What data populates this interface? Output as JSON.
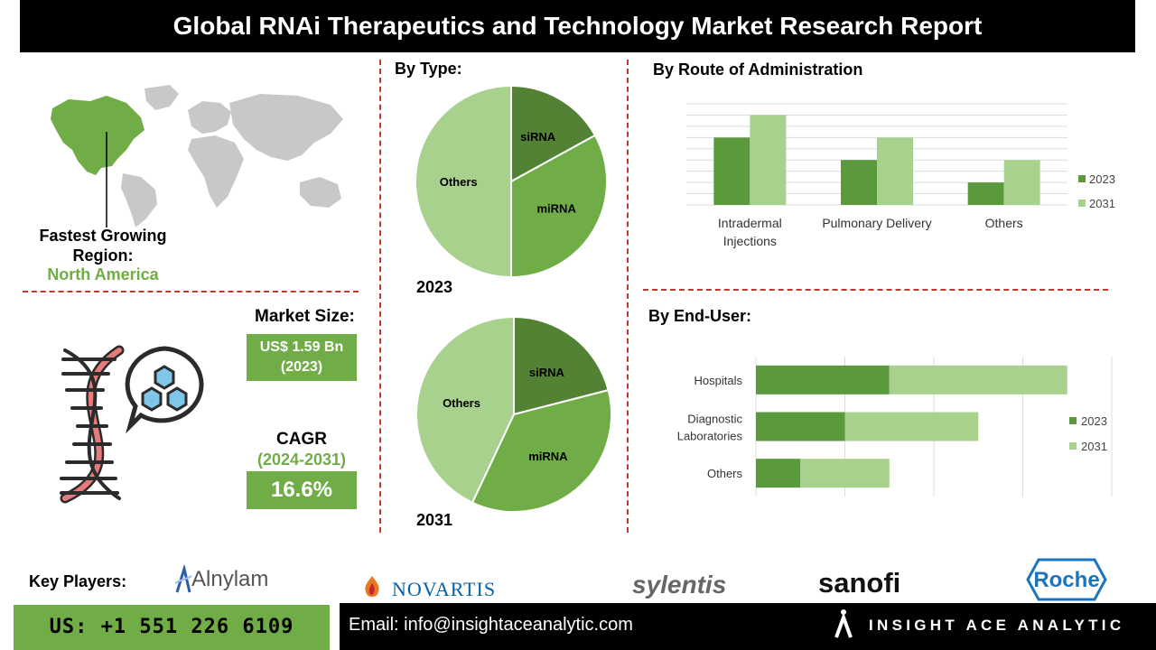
{
  "header": {
    "title": "Global RNAi Therapeutics and Technology Market Research Report"
  },
  "region": {
    "label": "Fastest Growing Region:",
    "value": "North America",
    "highlight_color": "#70ad47"
  },
  "market": {
    "size_label": "Market Size:",
    "size_value_line1": "US$ 1.59 Bn",
    "size_value_line2": "(2023)",
    "cagr_label": "CAGR",
    "cagr_period": "(2024-2031)",
    "cagr_value": "16.6%"
  },
  "icons": [
    "world-map",
    "dna-helix",
    "molecule-chat-bubble",
    "insight-ace-logo"
  ],
  "footer": {
    "key_players_label": "Key Players:",
    "players": [
      "Alnylam",
      "NOVARTIS",
      "sylentis",
      "sanofi",
      "Roche"
    ],
    "phone": "US: +1 551 226 6109",
    "email": "Email: info@insightaceanalytic.com",
    "brand": "INSIGHT ACE ANALYTIC"
  },
  "chart_data": [
    {
      "type": "pie",
      "title": "By Type:",
      "subtitle": "2023",
      "labels": [
        "siRNA",
        "miRNA",
        "Others"
      ],
      "values": [
        17,
        33,
        50
      ],
      "colors": [
        "#548235",
        "#70ad47",
        "#a9d18e"
      ]
    },
    {
      "type": "pie",
      "title": "",
      "subtitle": "2031",
      "labels": [
        "siRNA",
        "miRNA",
        "Others"
      ],
      "values": [
        21,
        36,
        43
      ],
      "colors": [
        "#548235",
        "#70ad47",
        "#a9d18e"
      ]
    },
    {
      "type": "bar",
      "title": "By Route of Administration",
      "categories": [
        "Intradermal Injections",
        "Pulmonary Delivery",
        "Others"
      ],
      "series": [
        {
          "name": "2023",
          "values": [
            3,
            2,
            1
          ],
          "color": "#5a9a3c"
        },
        {
          "name": "2031",
          "values": [
            4,
            3,
            2
          ],
          "color": "#a9d18e"
        }
      ],
      "ylim": [
        0,
        4.5
      ],
      "grid": true,
      "legend": "right"
    },
    {
      "type": "bar",
      "orientation": "horizontal",
      "stacked": true,
      "title": "By End-User:",
      "categories": [
        "Hospitals",
        "Diagnostic Laboratories",
        "Others"
      ],
      "series": [
        {
          "name": "2023",
          "values": [
            3,
            2,
            1
          ],
          "color": "#5a9a3c"
        },
        {
          "name": "2031",
          "values": [
            4,
            3,
            2
          ],
          "color": "#a9d18e"
        }
      ],
      "xlim": [
        0,
        8
      ],
      "grid": true,
      "legend": "right"
    }
  ]
}
